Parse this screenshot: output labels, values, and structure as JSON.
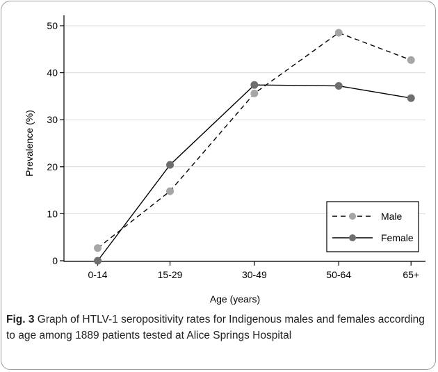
{
  "caption": {
    "label": "Fig. 3",
    "text": " Graph of HTLV-1 seropositivity rates for Indigenous males and females according to age among 1889 patients tested at Alice Springs Hospital"
  },
  "chart_data": {
    "type": "line",
    "categories": [
      "0-14",
      "15-29",
      "30-49",
      "50-64",
      "65+"
    ],
    "x": [
      7,
      22,
      39.5,
      57,
      72
    ],
    "series": [
      {
        "name": "Male",
        "values": [
          2.7,
          14.8,
          35.6,
          48.5,
          42.7
        ],
        "color": "#a6a6a6",
        "line": "dashed"
      },
      {
        "name": "Female",
        "values": [
          0.0,
          20.4,
          37.4,
          37.2,
          34.6
        ],
        "color": "#6e6e6e",
        "line": "solid"
      }
    ],
    "xlabel": "Age (years)",
    "ylabel": "Prevalence (%)",
    "ylim": [
      0,
      50
    ],
    "yticks": [
      "0",
      "10",
      "20",
      "30",
      "40",
      "50"
    ],
    "grid": true,
    "legend": "bottom-right"
  }
}
